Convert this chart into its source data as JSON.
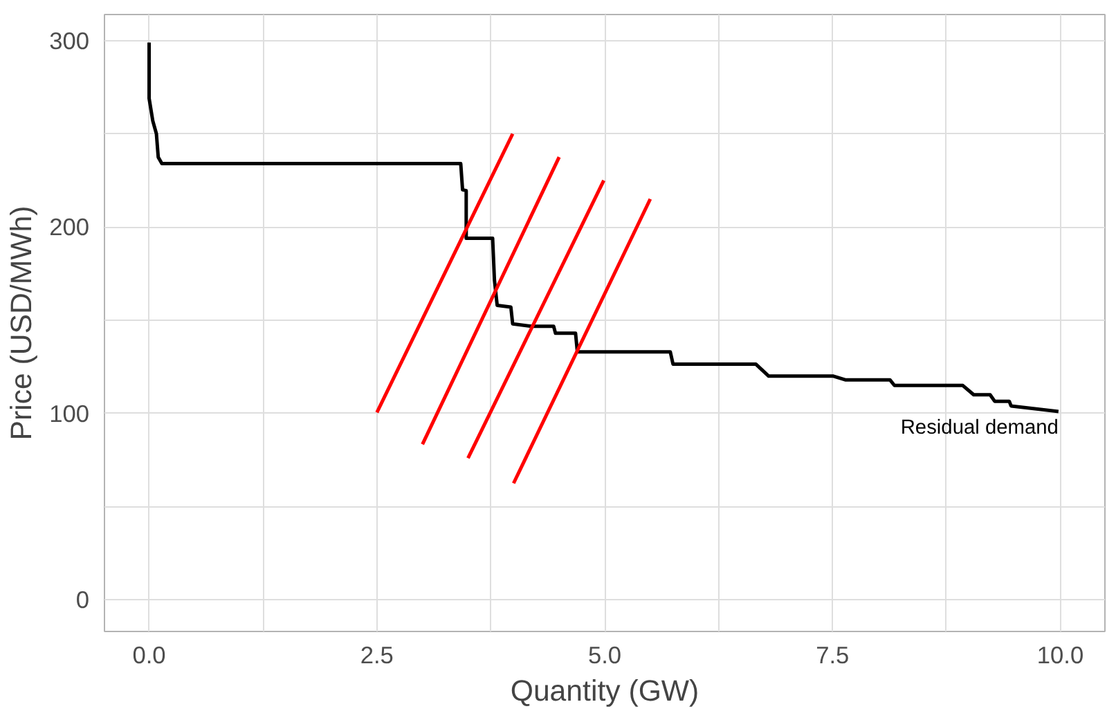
{
  "chart_data": {
    "type": "line",
    "xlabel": "Quantity (GW)",
    "ylabel": "Price (USD/MWh)",
    "xlim": [
      -0.49,
      10.49
    ],
    "ylim": [
      -17,
      314
    ],
    "xticks": [
      {
        "value": 0,
        "label": "0.0"
      },
      {
        "value": 1.25,
        "label": null
      },
      {
        "value": 2.5,
        "label": "2.5"
      },
      {
        "value": 3.75,
        "label": null
      },
      {
        "value": 5,
        "label": "5.0"
      },
      {
        "value": 6.25,
        "label": null
      },
      {
        "value": 7.5,
        "label": "7.5"
      },
      {
        "value": 8.75,
        "label": null
      },
      {
        "value": 10,
        "label": "10.0"
      }
    ],
    "yticks": [
      0,
      {
        "value": 50,
        "label": null
      },
      100,
      {
        "value": 150,
        "label": null
      },
      200,
      {
        "value": 250,
        "label": null
      },
      300
    ],
    "grid": true,
    "marker": "none",
    "line_style": "solid",
    "series": [
      {
        "color": "#000000",
        "x": [
          0,
          0,
          0.04,
          0.08,
          0.1,
          0.14,
          3.42,
          3.44,
          3.48,
          3.48,
          3.77,
          3.79,
          3.82,
          3.97,
          3.99,
          4.2,
          4.44,
          4.46,
          4.68,
          4.7,
          5.72,
          5.75,
          6.66,
          6.8,
          7.51,
          7.64,
          8.13,
          8.18,
          8.93,
          9.05,
          9.23,
          9.28,
          9.44,
          9.46,
          9.98
        ],
        "values": [
          299,
          269,
          257,
          250,
          237.5,
          234,
          234,
          220,
          219.5,
          194,
          194,
          171.5,
          158,
          157,
          148,
          146.7,
          146.7,
          143,
          143,
          133,
          133,
          126.4,
          126.4,
          120,
          120,
          118,
          118,
          115,
          115,
          110,
          110,
          106.5,
          106.5,
          104,
          101
        ]
      },
      {
        "color": "#ff0000",
        "x": [
          2.5,
          3.99
        ],
        "values": [
          100.5,
          250
        ]
      },
      {
        "color": "#ff0000",
        "x": [
          3.0,
          4.5
        ],
        "values": [
          83.4,
          237.5
        ]
      },
      {
        "color": "#ff0000",
        "x": [
          3.5,
          4.99
        ],
        "values": [
          76,
          225
        ]
      },
      {
        "color": "#ff0000",
        "x": [
          4.0,
          5.5
        ],
        "values": [
          62.5,
          215
        ]
      }
    ],
    "annotations": [
      {
        "text": "Residual demand",
        "x": 9.98,
        "y": 98
      }
    ]
  }
}
